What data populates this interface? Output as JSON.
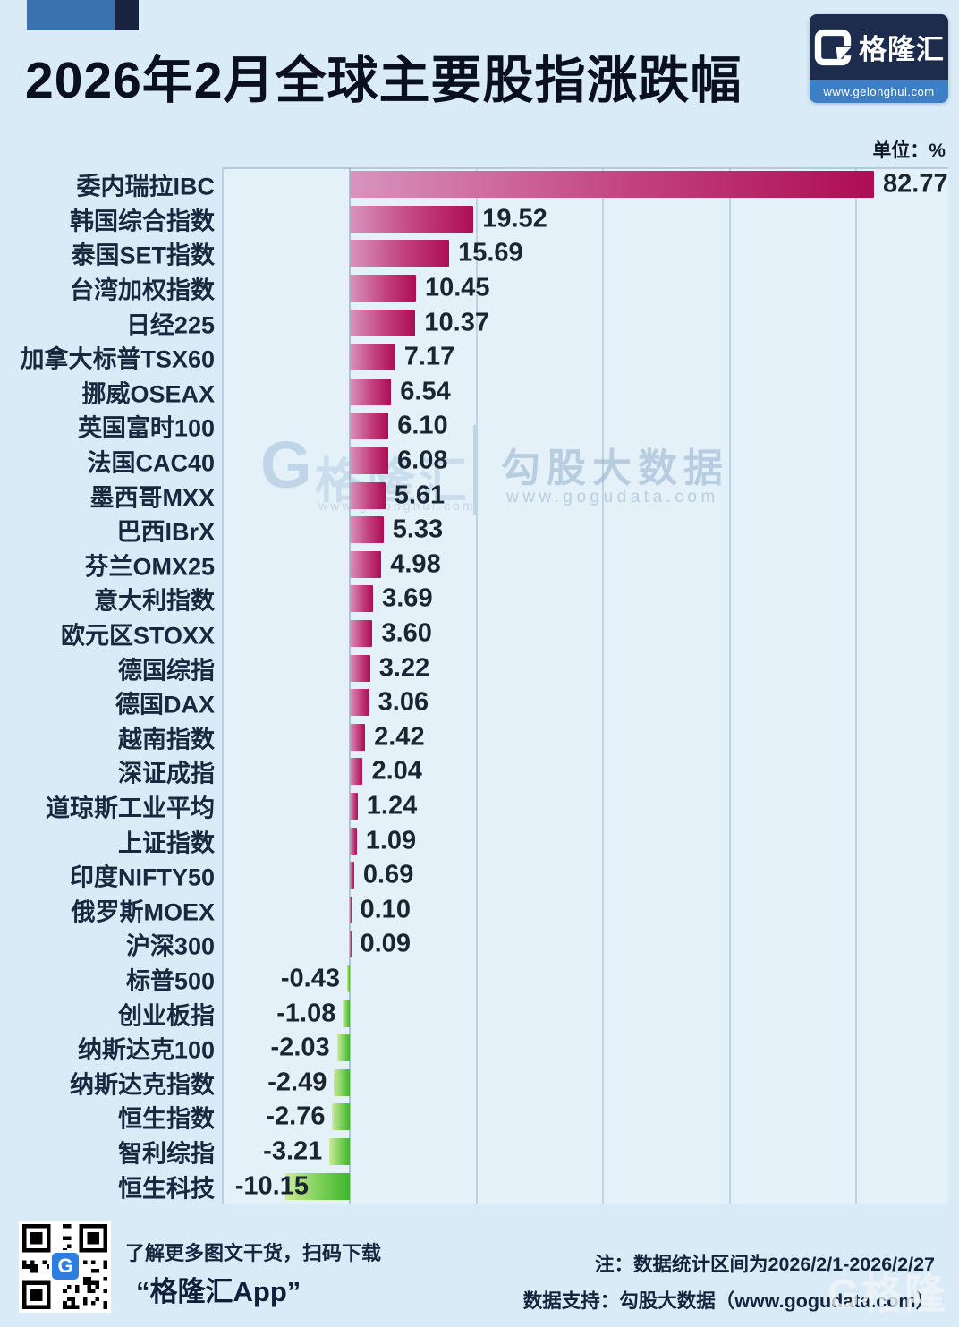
{
  "header": {
    "title": "2026年2月全球主要股指涨跌幅",
    "unit_label": "单位：%",
    "logo": {
      "g": "G",
      "name": "格隆汇",
      "url": "www.gelonghui.com"
    }
  },
  "chart_data": {
    "type": "bar",
    "orientation": "horizontal",
    "unit": "%",
    "title": "2026年2月全球主要股指涨跌幅",
    "categories": [
      "委内瑞拉IBC",
      "韩国综合指数",
      "泰国SET指数",
      "台湾加权指数",
      "日经225",
      "加拿大标普TSX60",
      "挪威OSEAX",
      "英国富时100",
      "法国CAC40",
      "墨西哥MXX",
      "巴西IBrX",
      "芬兰OMX25",
      "意大利指数",
      "欧元区STOXX",
      "德国综指",
      "德国DAX",
      "越南指数",
      "深证成指",
      "道琼斯工业平均",
      "上证指数",
      "印度NIFTY50",
      "俄罗斯MOEX",
      "沪深300",
      "标普500",
      "创业板指",
      "纳斯达克100",
      "纳斯达克指数",
      "恒生指数",
      "智利综指",
      "恒生科技"
    ],
    "values": [
      82.77,
      19.52,
      15.69,
      10.45,
      10.37,
      7.17,
      6.54,
      6.1,
      6.08,
      5.61,
      5.33,
      4.98,
      3.69,
      3.6,
      3.22,
      3.06,
      2.42,
      2.04,
      1.24,
      1.09,
      0.69,
      0.1,
      0.09,
      -0.43,
      -1.08,
      -2.03,
      -2.49,
      -2.76,
      -3.21,
      -10.15
    ],
    "value_labels": [
      "82.77",
      "19.52",
      "15.69",
      "10.45",
      "10.37",
      "7.17",
      "6.54",
      "6.10",
      "6.08",
      "5.61",
      "5.33",
      "4.98",
      "3.69",
      "3.60",
      "3.22",
      "3.06",
      "2.42",
      "2.04",
      "1.24",
      "1.09",
      "0.69",
      "0.10",
      "0.09",
      "-0.43",
      "-1.08",
      "-2.03",
      "-2.49",
      "-2.76",
      "-3.21",
      "-10.15"
    ],
    "xlim": [
      -20,
      96
    ],
    "gridline_values": [
      -20,
      0,
      20,
      40,
      60,
      80
    ],
    "grid": true,
    "legend": "none",
    "positive_gradient": [
      "#d894be",
      "#ad0d55"
    ],
    "negative_gradient": [
      "#cdeaa0",
      "#3db52c"
    ]
  },
  "watermark": {
    "logo_g": "G",
    "logo_text": "格隆汇",
    "logo_url": "www.gelonghui.com",
    "brand": "勾股大数据",
    "brand_url": "www.gogudata.com",
    "corner": "G格隆汇"
  },
  "footer": {
    "qr_caption_line1": "了解更多图文干货，扫码下载",
    "qr_caption_line2": "“格隆汇App”",
    "qr_center_g": "G",
    "note": "注：数据统计区间为2026/2/1-2026/2/27",
    "support": "数据支持：勾股大数据（www.gogudata.com）"
  },
  "colors": {
    "background": "#d8ebf7",
    "title": "#0b1020",
    "label": "#18283e",
    "logo_navy": "#1d2b4d",
    "logo_blue": "#3d7fc4",
    "deco_blue": "#3a72b0",
    "deco_navy": "#1a2340"
  }
}
